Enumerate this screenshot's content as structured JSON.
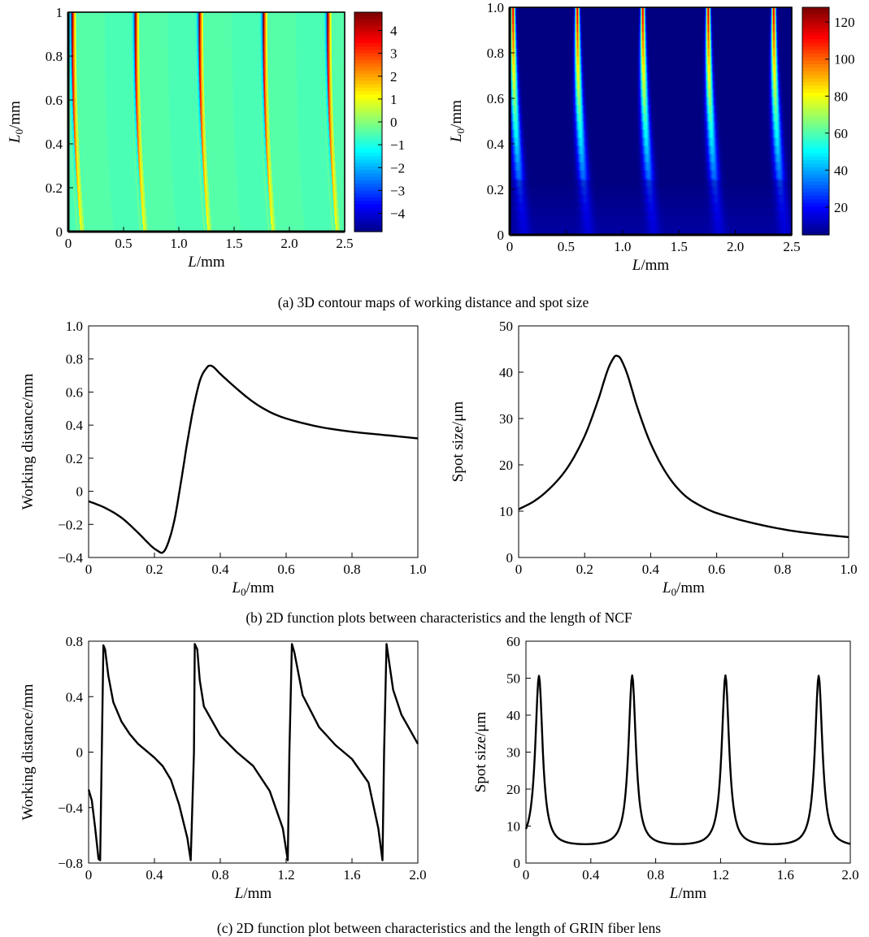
{
  "captions": {
    "a": "(a) 3D contour maps of working distance and spot size",
    "b": "(b) 2D function plots between characteristics and the length of NCF",
    "c": "(c) 2D function plot between characteristics and the length of GRIN fiber lens"
  },
  "chart_data": [
    {
      "id": "a-left",
      "type": "heatmap",
      "description_value": "working distance",
      "xlabel": "L/mm",
      "ylabel": "L0/mm",
      "xlim": [
        0,
        2.5
      ],
      "ylim": [
        0,
        1
      ],
      "xticks": [
        "0",
        "0.5",
        "1.0",
        "1.5",
        "2.0",
        "2.5"
      ],
      "yticks": [
        "0",
        "0.2",
        "0.4",
        "0.6",
        "0.8",
        "1"
      ],
      "colorbar": {
        "min": -4.8,
        "max": 4.8,
        "ticks": [
          "4",
          "3",
          "2",
          "1",
          "0",
          "−1",
          "−2",
          "−3",
          "−4"
        ],
        "tick_values": [
          4,
          3,
          2,
          1,
          0,
          -1,
          -2,
          -3,
          -4
        ],
        "colormap": "jet"
      },
      "ridges_at_top_L": [
        0.03,
        0.6,
        1.18,
        1.76,
        2.34
      ],
      "ridge_drift_at_bottom_L": 0.08
    },
    {
      "id": "a-right",
      "type": "heatmap",
      "description_value": "spot size",
      "xlabel": "L/mm",
      "ylabel": "L0/mm",
      "xlim": [
        0,
        2.5
      ],
      "ylim": [
        0,
        1
      ],
      "xticks": [
        "0",
        "0.5",
        "1.0",
        "1.5",
        "2.0",
        "2.5"
      ],
      "yticks": [
        "0",
        "0.2",
        "0.4",
        "0.6",
        "0.8",
        "1.0"
      ],
      "colorbar": {
        "min": 5,
        "max": 128,
        "ticks": [
          "120",
          "100",
          "80",
          "60",
          "40",
          "20"
        ],
        "tick_values": [
          120,
          100,
          80,
          60,
          40,
          20
        ],
        "colormap": "jet"
      },
      "ridges_at_top_L": [
        0.03,
        0.6,
        1.18,
        1.76,
        2.34
      ],
      "ridge_drift_at_bottom_L": 0.1
    },
    {
      "id": "b-left",
      "type": "line",
      "xlabel": "L0/mm",
      "ylabel": "Working distance/mm",
      "xlim": [
        0,
        1.0
      ],
      "ylim": [
        -0.4,
        1.0
      ],
      "xticks": [
        "0",
        "0.2",
        "0.4",
        "0.6",
        "0.8",
        "1.0"
      ],
      "xtick_values": [
        0,
        0.2,
        0.4,
        0.6,
        0.8,
        1.0
      ],
      "yticks": [
        "1.0",
        "0.8",
        "0.6",
        "0.4",
        "0.2",
        "0",
        "−0.2",
        "−0.4"
      ],
      "ytick_values": [
        1.0,
        0.8,
        0.6,
        0.4,
        0.2,
        0,
        -0.2,
        -0.4
      ],
      "series": [
        {
          "x": [
            0,
            0.05,
            0.1,
            0.15,
            0.19,
            0.21,
            0.225,
            0.24,
            0.26,
            0.28,
            0.3,
            0.32,
            0.34,
            0.36,
            0.37,
            0.38,
            0.4,
            0.45,
            0.5,
            0.55,
            0.6,
            0.7,
            0.8,
            0.9,
            1.0
          ],
          "y": [
            -0.06,
            -0.1,
            -0.16,
            -0.25,
            -0.33,
            -0.36,
            -0.37,
            -0.32,
            -0.18,
            0.05,
            0.3,
            0.52,
            0.68,
            0.75,
            0.76,
            0.75,
            0.71,
            0.62,
            0.54,
            0.48,
            0.44,
            0.39,
            0.36,
            0.34,
            0.32
          ]
        }
      ]
    },
    {
      "id": "b-right",
      "type": "line",
      "xlabel": "L0/mm",
      "ylabel": "Spot size/μm",
      "xlim": [
        0,
        1.0
      ],
      "ylim": [
        0,
        50
      ],
      "xticks": [
        "0",
        "0.2",
        "0.4",
        "0.6",
        "0.8",
        "1.0"
      ],
      "xtick_values": [
        0,
        0.2,
        0.4,
        0.6,
        0.8,
        1.0
      ],
      "yticks": [
        "50",
        "40",
        "30",
        "20",
        "10",
        "0"
      ],
      "ytick_values": [
        50,
        40,
        30,
        20,
        10,
        0
      ],
      "series": [
        {
          "x": [
            0,
            0.05,
            0.1,
            0.15,
            0.2,
            0.24,
            0.27,
            0.29,
            0.3,
            0.31,
            0.33,
            0.36,
            0.4,
            0.45,
            0.5,
            0.55,
            0.6,
            0.7,
            0.8,
            0.9,
            1.0
          ],
          "y": [
            10.4,
            12.3,
            15.3,
            19.6,
            26.2,
            33.8,
            40.5,
            43.3,
            43.5,
            42.8,
            39.4,
            32.3,
            24.6,
            17.9,
            13.6,
            11.2,
            9.6,
            7.6,
            6.1,
            5.1,
            4.4
          ]
        }
      ]
    },
    {
      "id": "c-left",
      "type": "line",
      "xlabel": "L/mm",
      "ylabel": "Working distance/mm",
      "xlim": [
        0,
        2.0
      ],
      "ylim": [
        -0.8,
        0.8
      ],
      "xticks": [
        "0",
        "0.4",
        "0.8",
        "1.2",
        "1.6",
        "2.0"
      ],
      "xtick_values": [
        0,
        0.4,
        0.8,
        1.2,
        1.6,
        2.0
      ],
      "yticks": [
        "0.8",
        "0.4",
        "0",
        "−0.4",
        "−0.8"
      ],
      "ytick_values": [
        0.8,
        0.4,
        0,
        -0.4,
        -0.8
      ],
      "period": 0.575,
      "series": [
        {
          "x": [
            0,
            0.02,
            0.04,
            0.06,
            0.07,
            0.08,
            0.09,
            0.1,
            0.12,
            0.15,
            0.2,
            0.25,
            0.3,
            0.35,
            0.4,
            0.45,
            0.5,
            0.55,
            0.6,
            0.62,
            0.64,
            0.645,
            0.66,
            0.675,
            0.7,
            0.8,
            0.9,
            1.0,
            1.1,
            1.18,
            1.21,
            1.22,
            1.235,
            1.25,
            1.3,
            1.4,
            1.5,
            1.6,
            1.7,
            1.76,
            1.785,
            1.795,
            1.81,
            1.85,
            1.9,
            2.0
          ],
          "y": [
            -0.27,
            -0.35,
            -0.55,
            -0.77,
            -0.78,
            0.0,
            0.77,
            0.74,
            0.55,
            0.36,
            0.22,
            0.13,
            0.06,
            0.01,
            -0.04,
            -0.1,
            -0.2,
            -0.38,
            -0.62,
            -0.78,
            0.0,
            0.78,
            0.74,
            0.52,
            0.33,
            0.12,
            0.0,
            -0.1,
            -0.28,
            -0.55,
            -0.78,
            0.0,
            0.78,
            0.72,
            0.41,
            0.18,
            0.05,
            -0.05,
            -0.22,
            -0.55,
            -0.78,
            0.0,
            0.78,
            0.45,
            0.27,
            0.06
          ]
        }
      ]
    },
    {
      "id": "c-right",
      "type": "line",
      "xlabel": "L/mm",
      "ylabel": "Spot size/μm",
      "xlim": [
        0,
        2.0
      ],
      "ylim": [
        0,
        60
      ],
      "xticks": [
        "0",
        "0.4",
        "0.8",
        "1.2",
        "1.6",
        "2.0"
      ],
      "xtick_values": [
        0,
        0.4,
        0.8,
        1.2,
        1.6,
        2.0
      ],
      "yticks": [
        "60",
        "50",
        "40",
        "30",
        "20",
        "10",
        "0"
      ],
      "ytick_values": [
        60,
        50,
        40,
        30,
        20,
        10,
        0
      ],
      "peaks_at_L": [
        0.08,
        0.655,
        1.23,
        1.805
      ],
      "peak_value": 50.5,
      "trough_value": 4.2,
      "start_value": 9.0,
      "end_value": 4.5
    }
  ]
}
